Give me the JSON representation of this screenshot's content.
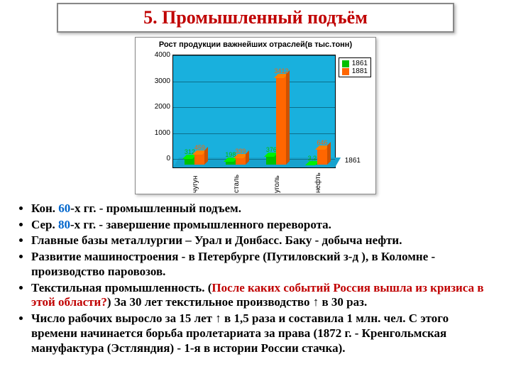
{
  "title": "5. Промышленный подъём",
  "chart": {
    "title": "Рост продукции важнейших отраслей(в тыс.тонн)",
    "type": "bar3d",
    "background_color": "#19b0dd",
    "grid_color": "#0c6f8c",
    "ylim": [
      0,
      4000
    ],
    "ytick_step": 1000,
    "yticks": [
      "0",
      "1000",
      "2000",
      "3000",
      "4000"
    ],
    "categories": [
      "чугун",
      "сталь",
      "уголь",
      "нефть"
    ],
    "series": [
      {
        "name": "1861",
        "color": "#00c000",
        "values": [
          312,
          198,
          376,
          3.2
        ],
        "labels": [
          "312",
          "198",
          "376",
          "3,2"
        ]
      },
      {
        "name": "1881",
        "color": "#ff6600",
        "values": [
          459,
          339,
          3412,
          646
        ],
        "labels": [
          "459",
          "339",
          "3412",
          "646"
        ]
      }
    ],
    "depth_label": "1861",
    "label_fontsize": 10
  },
  "bullets": {
    "b1_pre": "Кон. ",
    "b1_hl": "60",
    "b1_post": "-х гг. - промышленный подъем.",
    "b2_pre": "Сер. ",
    "b2_hl": "80",
    "b2_post": "-х гг. - завершение промышленного переворота.",
    "b3": "Главные базы металлургии – Урал и Донбасс. Баку - добыча нефти.",
    "b4": "Развитие машиностроения - в Петербурге (Путиловский з-д ), в Коломне - производство паровозов.",
    "b5_pre": "Текстильная промышленность. (",
    "b5_hl": "После каких событий Россия вышла из кризиса в этой области?",
    "b5_post": ") За 30 лет текстильное производство ↑ в 30 раз.",
    "b6": "Число рабочих выросло за 15 лет ↑ в 1,5 раза и составила 1 млн. чел.  С этого времени начинается борьба пролетариата за права (1872 г. - Кренгольмская мануфактура  (Эстляндия) - 1-я в истории России стачка)."
  }
}
